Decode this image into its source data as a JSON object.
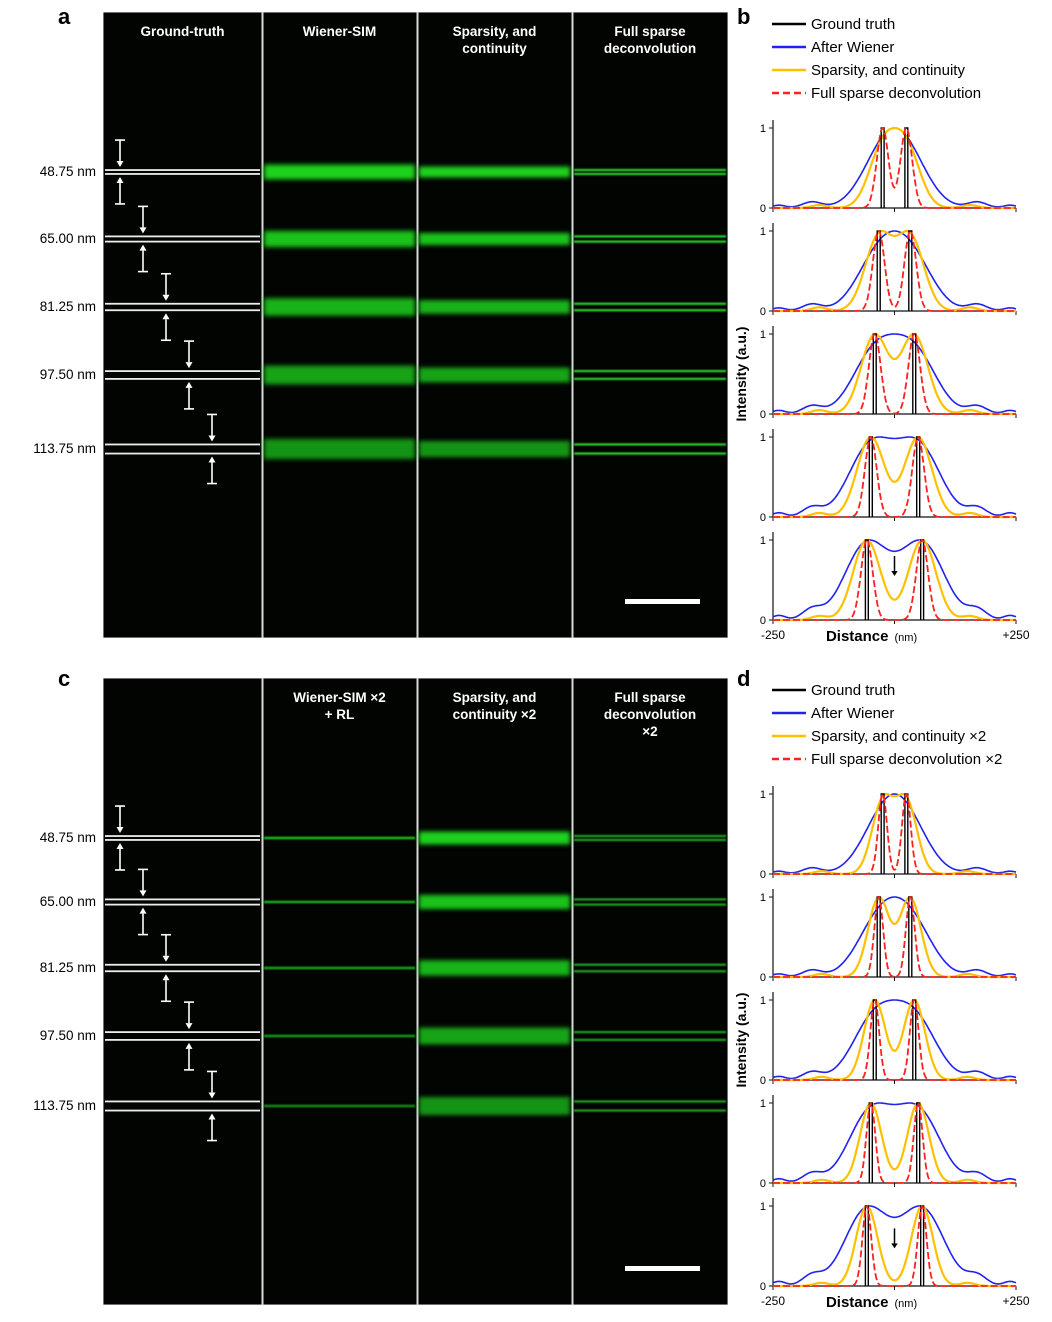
{
  "page": {
    "background": "#ffffff"
  },
  "panel_a": {
    "label": "a",
    "row_labels": [
      "48.75 nm",
      "65.00 nm",
      "81.25 nm",
      "97.50 nm",
      "113.75 nm"
    ],
    "separations_nm": [
      48.75,
      65.0,
      81.25,
      97.5,
      113.75
    ],
    "columns": [
      {
        "header": [
          "Ground-truth"
        ],
        "style": "ground_truth"
      },
      {
        "header": [
          "Wiener-SIM"
        ],
        "style": "band_wide"
      },
      {
        "header": [
          "Sparsity, and",
          "continuity"
        ],
        "style": "band_medium"
      },
      {
        "header": [
          "Full sparse",
          "deconvolution"
        ],
        "style": "double_line"
      }
    ],
    "colors": {
      "background": "#020402",
      "fluorescence": "#1ed21e",
      "resolved": "#2ee02e",
      "ground_truth_line": "#ededed",
      "arrow": "#ffffff",
      "header_text": "#ffffff",
      "scale_bar": "#ffffff"
    },
    "has_scale_bar": true
  },
  "panel_c": {
    "label": "c",
    "row_labels": [
      "48.75 nm",
      "65.00 nm",
      "81.25 nm",
      "97.50 nm",
      "113.75 nm"
    ],
    "separations_nm": [
      48.75,
      65.0,
      81.25,
      97.5,
      113.75
    ],
    "columns": [
      {
        "header": [],
        "style": "ground_truth"
      },
      {
        "header": [
          "Wiener-SIM ×2",
          "+ RL"
        ],
        "style": "thin_line"
      },
      {
        "header": [
          "Sparsity, and",
          "continuity ×2"
        ],
        "style": "band_bright"
      },
      {
        "header": [
          "Full sparse",
          "deconvolution",
          "×2"
        ],
        "style": "double_line_dim"
      }
    ],
    "colors": {
      "background": "#020402",
      "fluorescence": "#1ed21e",
      "resolved": "#2ee02e",
      "ground_truth_line": "#ededed",
      "arrow": "#ffffff",
      "header_text": "#ffffff",
      "scale_bar": "#ffffff"
    },
    "has_scale_bar": true
  },
  "chart_data": [
    {
      "panel_label": "b",
      "type": "line",
      "title": "",
      "xlabel_main": "Distance",
      "xlabel_unit": "(nm)",
      "ylabel": "Intensity (a.u.)",
      "xlim": [
        -250,
        250
      ],
      "ylim": [
        0,
        1
      ],
      "x_tick_labels": [
        "-250",
        "+250"
      ],
      "y_tick_labels": [
        "0",
        "1"
      ],
      "legend_position": "top",
      "grid": false,
      "separations_nm": [
        48.75,
        65.0,
        81.25,
        97.5,
        113.75
      ],
      "legend": [
        {
          "name": "Ground truth",
          "color": "#000000",
          "dash": "solid"
        },
        {
          "name": "After Wiener",
          "color": "#2222ee",
          "dash": "solid"
        },
        {
          "name": "Sparsity, and continuity",
          "color": "#ffc000",
          "dash": "solid"
        },
        {
          "name": "Full sparse deconvolution",
          "color": "#ff2020",
          "dash": "dashed"
        }
      ],
      "series_models": [
        {
          "name": "Ground truth",
          "kind": "bars",
          "color": "#000000",
          "bar_halfwidth_nm": 3,
          "width": 1.4
        },
        {
          "name": "After Wiener",
          "kind": "gauss2",
          "color": "#2222ee",
          "sigma_nm": 45,
          "width": 1.6,
          "sidelobes": [
            {
              "offset_nm": 170,
              "amp": 0.13,
              "sigma_nm": 20
            },
            {
              "offset_nm": 238,
              "amp": 0.06,
              "sigma_nm": 14
            }
          ]
        },
        {
          "name": "Sparsity, and continuity",
          "kind": "gauss2",
          "color": "#ffc000",
          "sigma_nm": 28,
          "width": 2.2,
          "sidelobes": [
            {
              "offset_nm": 155,
              "amp": 0.05,
              "sigma_nm": 16
            }
          ]
        },
        {
          "name": "Full sparse deconvolution",
          "kind": "gauss2",
          "color": "#ff2020",
          "sigma_nm": 12,
          "width": 1.8,
          "dash": "7 3"
        }
      ],
      "annotations": [
        {
          "subplot": 4,
          "x_nm": 0,
          "y_from": 0.8,
          "y_to": 0.55,
          "type": "down-arrow"
        }
      ]
    },
    {
      "panel_label": "d",
      "type": "line",
      "title": "",
      "xlabel_main": "Distance",
      "xlabel_unit": "(nm)",
      "ylabel": "Intensity (a.u.)",
      "xlim": [
        -250,
        250
      ],
      "ylim": [
        0,
        1
      ],
      "x_tick_labels": [
        "-250",
        "+250"
      ],
      "y_tick_labels": [
        "0",
        "1"
      ],
      "legend_position": "top",
      "grid": false,
      "separations_nm": [
        48.75,
        65.0,
        81.25,
        97.5,
        113.75
      ],
      "legend": [
        {
          "name": "Ground truth",
          "color": "#000000",
          "dash": "solid"
        },
        {
          "name": "After Wiener",
          "color": "#2222ee",
          "dash": "solid"
        },
        {
          "name": "Sparsity, and continuity ×2",
          "color": "#ffc000",
          "dash": "solid"
        },
        {
          "name": "Full sparse deconvolution ×2",
          "color": "#ff2020",
          "dash": "dashed"
        }
      ],
      "series_models": [
        {
          "name": "Ground truth",
          "kind": "bars",
          "color": "#000000",
          "bar_halfwidth_nm": 3,
          "width": 1.4
        },
        {
          "name": "After Wiener",
          "kind": "gauss2",
          "color": "#2222ee",
          "sigma_nm": 45,
          "width": 1.6,
          "sidelobes": [
            {
              "offset_nm": 170,
              "amp": 0.13,
              "sigma_nm": 20
            },
            {
              "offset_nm": 238,
              "amp": 0.06,
              "sigma_nm": 14
            }
          ]
        },
        {
          "name": "Sparsity, and continuity ×2",
          "kind": "gauss2",
          "color": "#ffc000",
          "sigma_nm": 22,
          "width": 2.2,
          "sidelobes": [
            {
              "offset_nm": 150,
              "amp": 0.04,
              "sigma_nm": 15
            }
          ]
        },
        {
          "name": "Full sparse deconvolution ×2",
          "kind": "gauss2",
          "color": "#ff2020",
          "sigma_nm": 9,
          "width": 1.8,
          "dash": "7 3"
        }
      ],
      "annotations": [
        {
          "subplot": 4,
          "x_nm": 0,
          "y_from": 0.72,
          "y_to": 0.47,
          "type": "down-arrow"
        }
      ]
    }
  ]
}
